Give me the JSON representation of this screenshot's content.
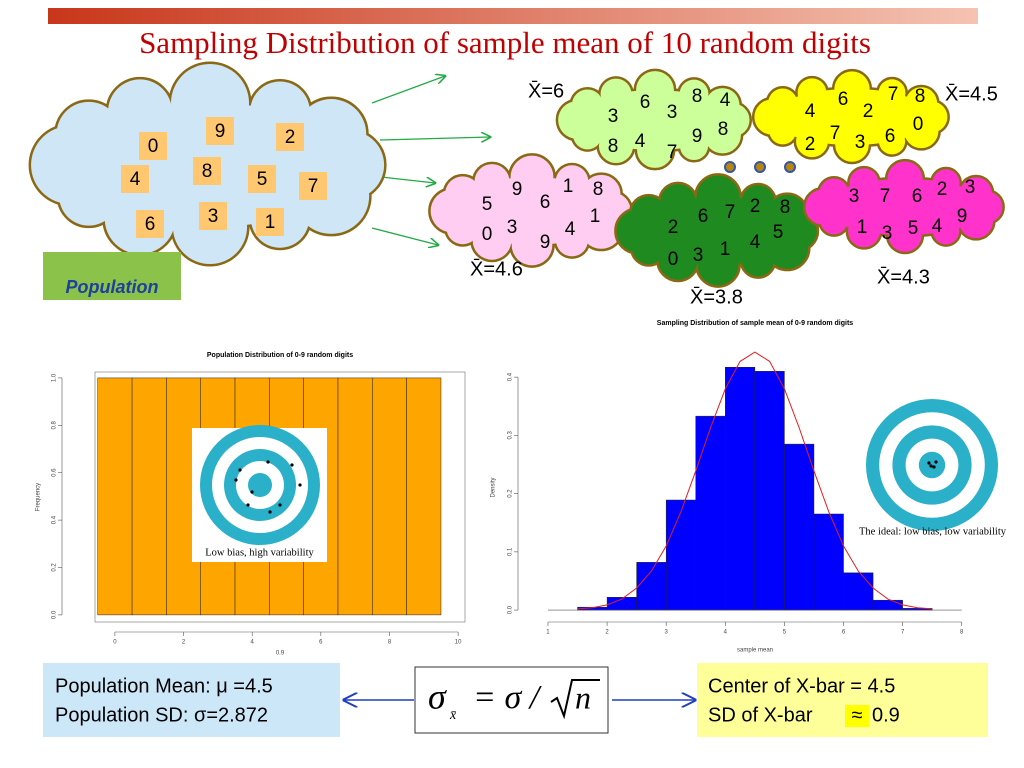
{
  "title": "Sampling Distribution of  sample mean of 10 random digits",
  "population": {
    "label": "Population",
    "digits": [
      "0",
      "9",
      "2",
      "4",
      "8",
      "5",
      "7",
      "6",
      "3",
      "1"
    ]
  },
  "samples": [
    {
      "label": "X̄=6",
      "digits": [
        "3",
        "6",
        "3",
        "8",
        "4",
        "8",
        "4",
        "7",
        "9",
        "8"
      ]
    },
    {
      "label": "X̄=4.5",
      "digits": [
        "4",
        "6",
        "2",
        "7",
        "8",
        "2",
        "7",
        "3",
        "6",
        "0"
      ]
    },
    {
      "label": "X̄=4.6",
      "digits": [
        "5",
        "9",
        "6",
        "1",
        "8",
        "0",
        "3",
        "9",
        "4",
        "1"
      ]
    },
    {
      "label": "X̄=3.8",
      "digits": [
        "2",
        "6",
        "7",
        "2",
        "8",
        "0",
        "3",
        "1",
        "4",
        "5"
      ]
    },
    {
      "label": "X̄=4.3",
      "digits": [
        "3",
        "7",
        "6",
        "2",
        "3",
        "1",
        "3",
        "5",
        "4",
        "9"
      ]
    }
  ],
  "chart_data": [
    {
      "type": "histogram",
      "title": "Population Distribution of 0-9 random digits",
      "xlabel": "0.9",
      "ylabel": "Frequency",
      "bins": [
        -0.5,
        0.5,
        1.5,
        2.5,
        3.5,
        4.5,
        5.5,
        6.5,
        7.5,
        8.5,
        9.5
      ],
      "values": [
        1,
        1,
        1,
        1,
        1,
        1,
        1,
        1,
        1,
        1
      ],
      "color": "#ffa500",
      "xlim": [
        -0.58,
        10.2
      ],
      "ylim": [
        -0.03,
        1.025
      ],
      "xticks": [
        0,
        2,
        4,
        6,
        8,
        10
      ],
      "yticks": [
        {
          "value": 0,
          "label": "0.0"
        },
        0.2,
        0.4,
        0.6,
        0.8,
        {
          "value": 1,
          "label": "1.0"
        }
      ],
      "inset": "Low bias, high variability"
    },
    {
      "type": "histogram",
      "title": "Sampling Distribution of sample mean of 0-9 random digits",
      "xlabel": "sample mean",
      "ylabel": "Density",
      "bins": [
        1.5,
        2,
        2.5,
        3,
        3.5,
        4,
        4.5,
        5,
        5.5,
        6,
        6.5,
        7,
        7.5
      ],
      "values": [
        0.005,
        0.022,
        0.082,
        0.189,
        0.333,
        0.417,
        0.41,
        0.285,
        0.165,
        0.064,
        0.017,
        0.003
      ],
      "color": "#0000ff",
      "curve": {
        "color": "#e02020",
        "x": [
          1.5,
          1.75,
          2,
          2.25,
          2.5,
          2.75,
          3,
          3.25,
          3.5,
          3.75,
          4,
          4.25,
          4.5,
          4.75,
          5,
          5.25,
          5.5,
          5.75,
          6,
          6.25,
          6.5,
          6.75,
          7,
          7.25,
          7.5
        ],
        "values": [
          0.002,
          0.004,
          0.009,
          0.019,
          0.038,
          0.067,
          0.11,
          0.169,
          0.239,
          0.313,
          0.38,
          0.427,
          0.443,
          0.427,
          0.38,
          0.313,
          0.239,
          0.169,
          0.11,
          0.067,
          0.038,
          0.019,
          0.009,
          0.004,
          0.002
        ]
      },
      "xlim": [
        0.865,
        8.14
      ],
      "ylim": [
        -0.017,
        0.438
      ],
      "xticks": [
        1,
        2,
        3,
        4,
        5,
        6,
        7,
        8
      ],
      "yticks": [
        {
          "value": 0,
          "label": "0.0"
        },
        0.1,
        0.2,
        0.3,
        0.4
      ],
      "inset": "The ideal: low bias, low variability"
    }
  ],
  "bottom": {
    "left": [
      "Population Mean: μ =4.5",
      "Population SD: σ=2.872"
    ],
    "formula": {
      "lhs": "σ",
      "sub": "x̄",
      "rhs": "= σ /",
      "root": "n"
    },
    "right": {
      "center": "Center of X-bar = 4.5",
      "sd": [
        "SD of X-bar",
        "≈",
        "0.9"
      ]
    }
  }
}
